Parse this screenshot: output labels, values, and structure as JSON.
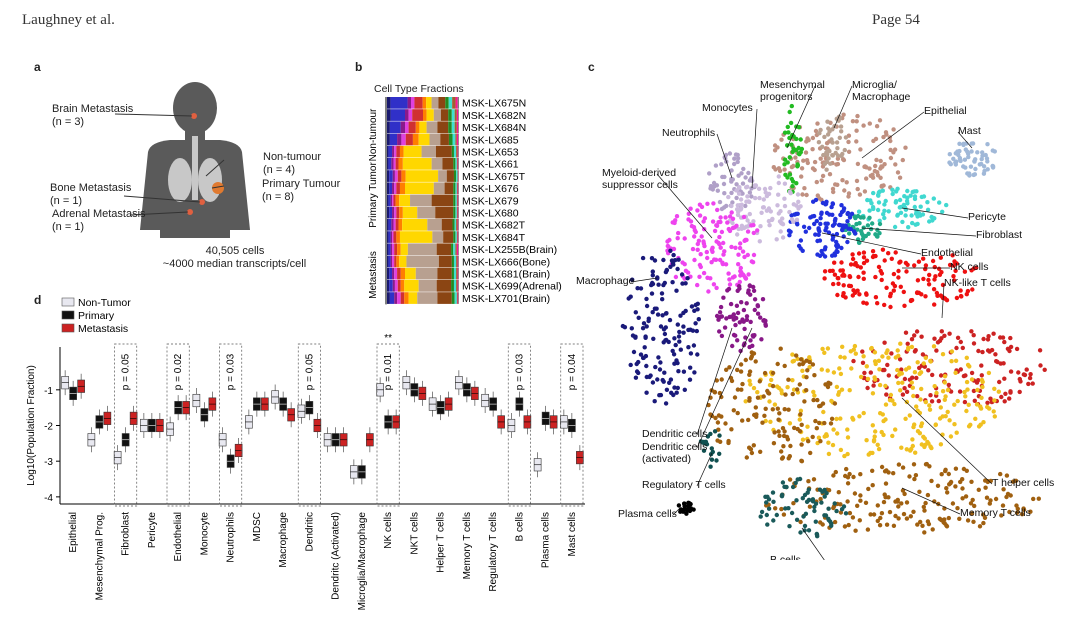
{
  "header": {
    "left": "Laughney et al.",
    "right": "Page 54"
  },
  "panels": {
    "a": "a",
    "b": "b",
    "c": "c",
    "d": "d"
  },
  "panel_a": {
    "labels": [
      {
        "name": "Brain Metastasis",
        "n": "(n = 3)"
      },
      {
        "name": "Non-tumour",
        "n": "(n = 4)"
      },
      {
        "name": "Bone Metastasis",
        "n": "(n = 1)"
      },
      {
        "name": "Primary Tumour",
        "n": "(n = 8)"
      },
      {
        "name": "Adrenal Metastasis",
        "n": "(n = 1)"
      }
    ],
    "caption1": "40,505 cells",
    "caption2": "~4000 median transcripts/cell"
  },
  "panel_b": {
    "title": "Cell Type Fractions",
    "groups": [
      "Non-tumour",
      "Primary Tumor",
      "Metastasis"
    ],
    "samples": [
      "MSK-LX675N",
      "MSK-LX682N",
      "MSK-LX684N",
      "MSK-LX685",
      "MSK-LX653",
      "MSK-LX661",
      "MSK-LX675T",
      "MSK-LX676",
      "MSK-LX679",
      "MSK-LX680",
      "MSK-LX682T",
      "MSK-LX684T",
      "MSK-LX255B(Brain)",
      "MSK-LX666(Bone)",
      "MSK-LX681(Brain)",
      "MSK-LX699(Adrenal)",
      "MSK-LX701(Brain)"
    ],
    "colors": [
      "#1a1a6e",
      "#3030c8",
      "#8a1a8a",
      "#e040e0",
      "#d03030",
      "#ff7f00",
      "#ffd700",
      "#b8a090",
      "#8b4513",
      "#228b22",
      "#40e0d0",
      "#a06030",
      "#ff1493",
      "#808080"
    ],
    "fractions": [
      [
        0.05,
        0.25,
        0.05,
        0.05,
        0.12,
        0.05,
        0.08,
        0.1,
        0.1,
        0.05,
        0.05,
        0.05,
        0.03,
        0.02
      ],
      [
        0.05,
        0.2,
        0.05,
        0.05,
        0.15,
        0.05,
        0.1,
        0.1,
        0.1,
        0.05,
        0.04,
        0.03,
        0.02,
        0.01
      ],
      [
        0.04,
        0.15,
        0.06,
        0.05,
        0.1,
        0.05,
        0.1,
        0.15,
        0.15,
        0.05,
        0.04,
        0.03,
        0.02,
        0.01
      ],
      [
        0.04,
        0.1,
        0.06,
        0.06,
        0.1,
        0.08,
        0.15,
        0.15,
        0.12,
        0.05,
        0.04,
        0.02,
        0.02,
        0.01
      ],
      [
        0.02,
        0.05,
        0.03,
        0.03,
        0.05,
        0.05,
        0.25,
        0.2,
        0.22,
        0.03,
        0.03,
        0.02,
        0.01,
        0.01
      ],
      [
        0.02,
        0.04,
        0.03,
        0.03,
        0.04,
        0.06,
        0.4,
        0.15,
        0.15,
        0.03,
        0.02,
        0.01,
        0.01,
        0.01
      ],
      [
        0.03,
        0.05,
        0.03,
        0.04,
        0.05,
        0.06,
        0.45,
        0.12,
        0.1,
        0.03,
        0.02,
        0.01,
        0.005,
        0.005
      ],
      [
        0.03,
        0.04,
        0.03,
        0.03,
        0.05,
        0.07,
        0.4,
        0.15,
        0.12,
        0.03,
        0.02,
        0.01,
        0.01,
        0.01
      ],
      [
        0.02,
        0.03,
        0.02,
        0.02,
        0.03,
        0.05,
        0.15,
        0.3,
        0.3,
        0.03,
        0.02,
        0.01,
        0.01,
        0.01
      ],
      [
        0.03,
        0.04,
        0.03,
        0.03,
        0.04,
        0.05,
        0.2,
        0.25,
        0.25,
        0.03,
        0.02,
        0.01,
        0.01,
        0.01
      ],
      [
        0.02,
        0.04,
        0.03,
        0.03,
        0.04,
        0.05,
        0.35,
        0.2,
        0.15,
        0.03,
        0.02,
        0.02,
        0.01,
        0.01
      ],
      [
        0.02,
        0.03,
        0.02,
        0.02,
        0.04,
        0.05,
        0.45,
        0.15,
        0.14,
        0.03,
        0.02,
        0.01,
        0.01,
        0.01
      ],
      [
        0.02,
        0.03,
        0.02,
        0.03,
        0.04,
        0.05,
        0.1,
        0.4,
        0.2,
        0.03,
        0.03,
        0.02,
        0.02,
        0.01
      ],
      [
        0.02,
        0.03,
        0.02,
        0.03,
        0.03,
        0.04,
        0.1,
        0.45,
        0.18,
        0.03,
        0.03,
        0.02,
        0.01,
        0.01
      ],
      [
        0.03,
        0.04,
        0.03,
        0.04,
        0.05,
        0.06,
        0.15,
        0.3,
        0.2,
        0.03,
        0.03,
        0.02,
        0.01,
        0.01
      ],
      [
        0.03,
        0.05,
        0.03,
        0.04,
        0.04,
        0.05,
        0.2,
        0.25,
        0.2,
        0.04,
        0.03,
        0.02,
        0.01,
        0.01
      ],
      [
        0.04,
        0.06,
        0.04,
        0.05,
        0.05,
        0.06,
        0.12,
        0.28,
        0.2,
        0.04,
        0.03,
        0.01,
        0.01,
        0.01
      ]
    ]
  },
  "panel_c": {
    "labels": [
      {
        "text": "Mesenchymal\nprogenitors",
        "color": "#22bb22"
      },
      {
        "text": "Microglia/\nMacrophage",
        "color": "#b8a090"
      },
      {
        "text": "Monocytes",
        "color": "#ccbbdd"
      },
      {
        "text": "Epithelial",
        "color": "#c09080"
      },
      {
        "text": "Mast",
        "color": "#a0b8d8"
      },
      {
        "text": "Neutrophils",
        "color": "#b0a0c8"
      },
      {
        "text": "Myeloid-derived\nsuppressor cells",
        "color": "#ee44ee"
      },
      {
        "text": "Pericyte",
        "color": "#40d8d0"
      },
      {
        "text": "Fibroblast",
        "color": "#20aa88"
      },
      {
        "text": "Endothelial",
        "color": "#2030dd"
      },
      {
        "text": "NK cells",
        "color": "#ee1111"
      },
      {
        "text": "NK-like T cells",
        "color": "#cc2222"
      },
      {
        "text": "Macrophage",
        "color": "#1a1a7a"
      },
      {
        "text": "Dendritic cells",
        "color": "#881888"
      },
      {
        "text": "Dendritic cells\n(activated)",
        "color": "#661466"
      },
      {
        "text": "Regulatory T cells",
        "color": "#105050"
      },
      {
        "text": "T helper cells",
        "color": "#f0c020"
      },
      {
        "text": "Plasma cells",
        "color": "#000000"
      },
      {
        "text": "Memory T cells",
        "color": "#a06010"
      },
      {
        "text": "B cells",
        "color": "#1a5a5a"
      }
    ]
  },
  "chart_data": {
    "type": "box",
    "ylabel": "Log10(Population Fraction)",
    "ylim": [
      -4.2,
      0.2
    ],
    "yticks": [
      "-1",
      "-2",
      "-3",
      "-4"
    ],
    "legend": [
      {
        "name": "Non-Tumor",
        "color": "#e8e8f0"
      },
      {
        "name": "Primary",
        "color": "#111111"
      },
      {
        "name": "Metastasis",
        "color": "#cc2222"
      }
    ],
    "categories": [
      "Epithelial",
      "Mesenchymal Prog.",
      "Fibroblast",
      "Pericyte",
      "Endothelial",
      "Monocyte",
      "Neutrophils",
      "MDSC",
      "Macrophage",
      "Dendritic",
      "Dendritc (Activated)",
      "Microglia/Macrophage",
      "NK cells",
      "NKT cells",
      "Helper T cells",
      "Memory T cells",
      "Regulatory T cells",
      "B cells",
      "Plasma cells",
      "Mast cells"
    ],
    "series": [
      {
        "name": "Non-Tumor",
        "values": [
          -0.8,
          -2.4,
          -2.9,
          -2.0,
          -2.1,
          -1.3,
          -2.4,
          -1.9,
          -1.2,
          -1.6,
          -2.4,
          -3.3,
          -1.0,
          -0.8,
          -1.4,
          -0.8,
          -1.3,
          -2.0,
          -3.1,
          -1.9
        ]
      },
      {
        "name": "Primary",
        "values": [
          -1.1,
          -1.9,
          -2.4,
          -2.0,
          -1.5,
          -1.7,
          -3.0,
          -1.4,
          -1.4,
          -1.5,
          -2.4,
          -3.3,
          -1.9,
          -1.0,
          -1.5,
          -1.0,
          -1.4,
          -1.4,
          -1.8,
          -2.0
        ]
      },
      {
        "name": "Metastasis",
        "values": [
          -0.9,
          -1.8,
          -1.8,
          -2.0,
          -1.5,
          -1.4,
          -2.7,
          -1.4,
          -1.7,
          -2.0,
          -2.4,
          -2.4,
          -1.9,
          -1.1,
          -1.4,
          -1.1,
          -1.9,
          -1.9,
          -1.9,
          -2.9
        ]
      }
    ],
    "annotations": [
      {
        "category": "Fibroblast",
        "text": "p = 0.05"
      },
      {
        "category": "Endothelial",
        "text": "p = 0.02"
      },
      {
        "category": "Neutrophils",
        "text": "p = 0.03"
      },
      {
        "category": "Dendritic",
        "text": "p = 0.05"
      },
      {
        "category": "NK cells",
        "text": "p = 0.01",
        "stars": "**"
      },
      {
        "category": "B cells",
        "text": "p = 0.03"
      },
      {
        "category": "Mast cells",
        "text": "p = 0.04"
      }
    ]
  }
}
